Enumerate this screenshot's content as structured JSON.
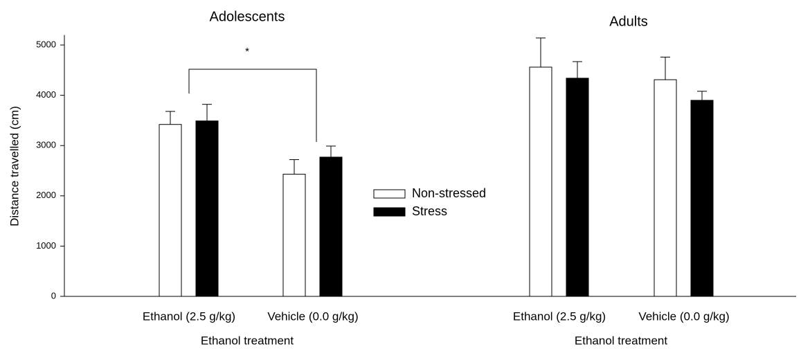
{
  "chart_data": [
    {
      "type": "bar",
      "title": "Adolescents",
      "xlabel": "Ethanol treatment",
      "ylabel": "Distance travelled (cm)",
      "categories": [
        "Ethanol (2.5 g/kg)",
        "Vehicle (0.0 g/kg)"
      ],
      "series": [
        {
          "name": "Non-stressed",
          "color": "#ffffff",
          "values": [
            3420,
            2430
          ],
          "errors": [
            260,
            290
          ]
        },
        {
          "name": "Stress",
          "color": "#000000",
          "values": [
            3490,
            2770
          ],
          "errors": [
            330,
            220
          ]
        }
      ],
      "ylim": [
        0,
        5200
      ],
      "yticks": [
        0,
        1000,
        2000,
        3000,
        4000,
        5000
      ],
      "annotations": [
        "*"
      ]
    },
    {
      "type": "bar",
      "title": "Adults",
      "xlabel": "Ethanol treatment",
      "categories": [
        "Ethanol (2.5 g/kg)",
        "Vehicle (0.0 g/kg)"
      ],
      "series": [
        {
          "color": "#ffffff",
          "values": [
            4560,
            4310
          ],
          "errors": [
            580,
            450
          ]
        },
        {
          "color": "#000000",
          "values": [
            4340,
            3900
          ],
          "errors": [
            330,
            180
          ]
        }
      ],
      "ylim": [
        0,
        5200
      ]
    }
  ]
}
